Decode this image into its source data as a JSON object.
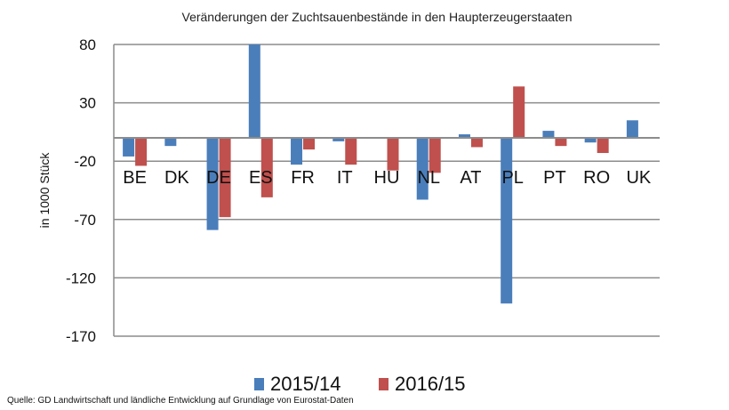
{
  "chart_data": {
    "type": "bar",
    "title": "Veränderungen der Zuchtsauenbestände in den Haupterzeugerstaaten",
    "ylabel": "in 1000 Stück",
    "xlabel": "",
    "ylim": [
      -170,
      80
    ],
    "yticks": [
      80,
      30,
      -20,
      -70,
      -120,
      -170
    ],
    "grid": true,
    "legend_position": "bottom",
    "categories": [
      "BE",
      "DK",
      "DE",
      "ES",
      "FR",
      "IT",
      "HU",
      "NL",
      "AT",
      "PL",
      "PT",
      "RO",
      "UK"
    ],
    "series": [
      {
        "name": "2015/14",
        "color": "#4a7ebb",
        "values": [
          -16,
          -7,
          -79,
          80,
          -23,
          -3,
          0,
          -53,
          3,
          -142,
          6,
          -4,
          15
        ]
      },
      {
        "name": "2016/15",
        "color": "#c0504d",
        "values": [
          -24,
          0,
          -68,
          -51,
          -10,
          -23,
          -28,
          -30,
          -8,
          44,
          -7,
          -13,
          0
        ]
      }
    ]
  },
  "source": "Quelle: GD Landwirtschaft und ländliche Entwicklung auf Grundlage von Eurostat-Daten"
}
